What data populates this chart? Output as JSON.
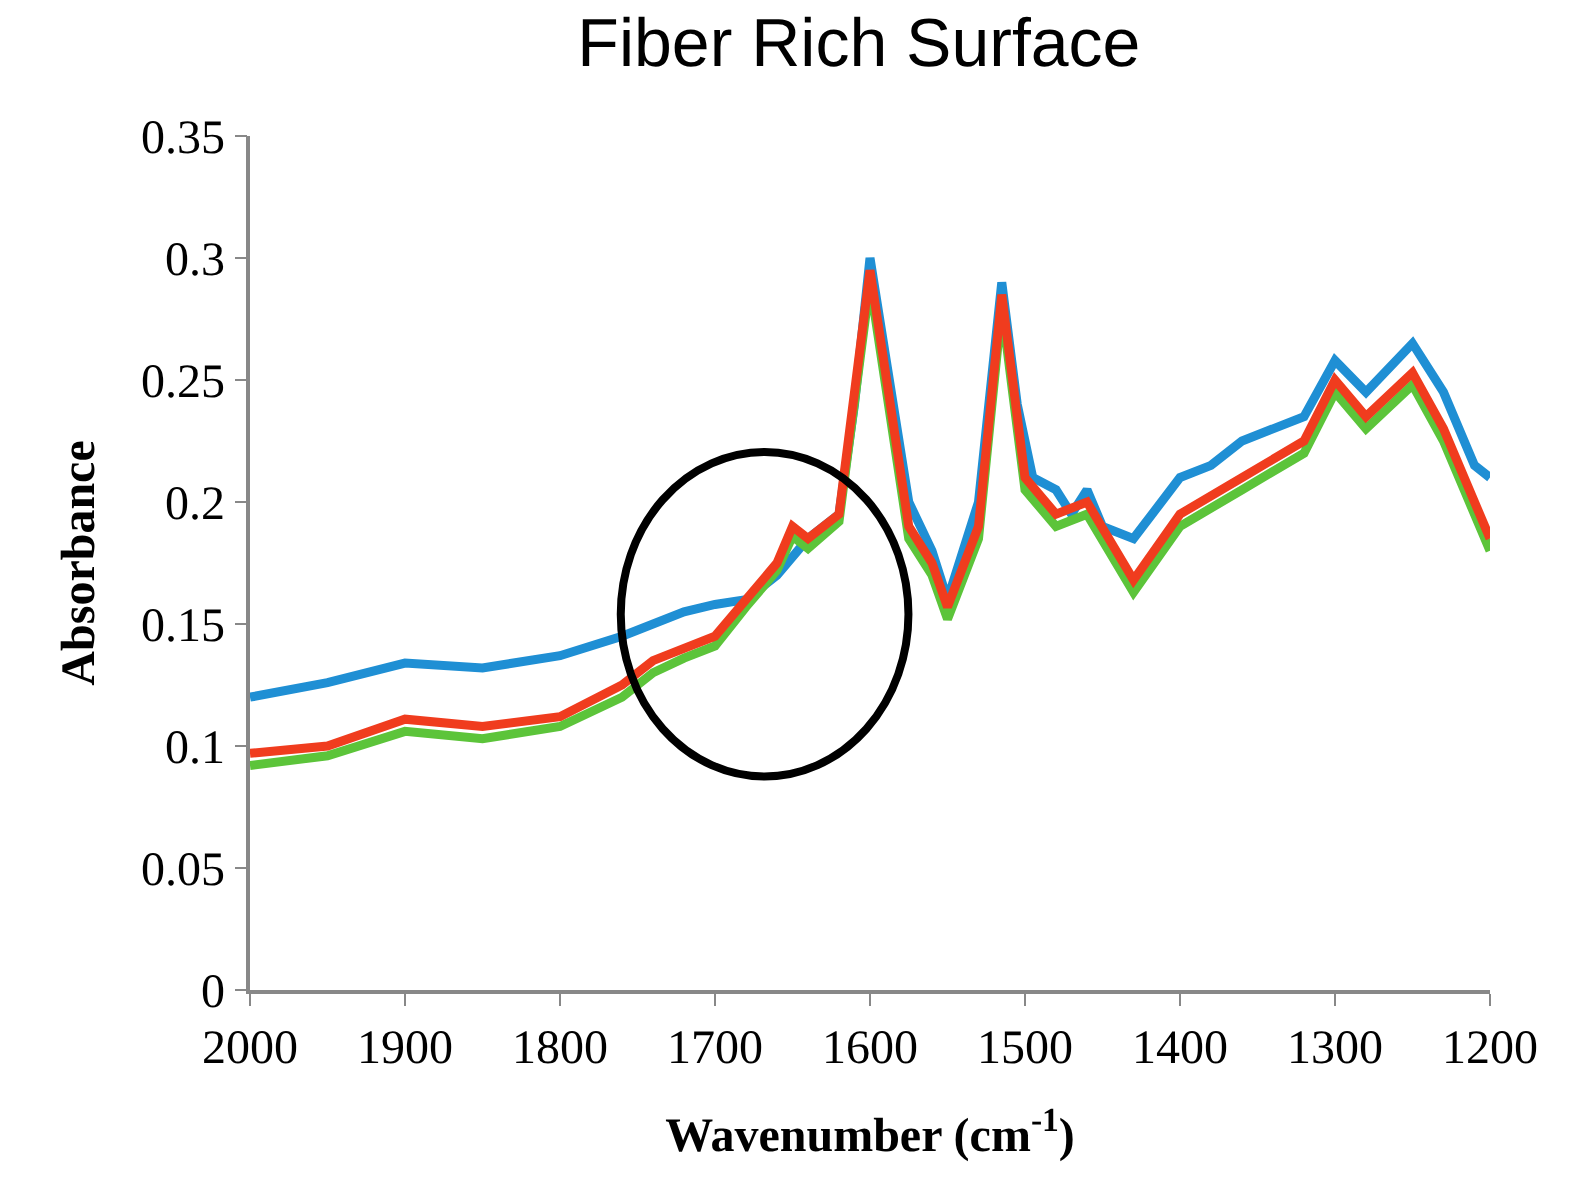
{
  "chart_data": {
    "type": "line",
    "title": "Fiber Rich Surface",
    "xlabel": "Wavenumber (cm$^{-1}$)",
    "ylabel": "Absorbance",
    "xlim": [
      2000,
      1200
    ],
    "xticks": [
      2000,
      1900,
      1800,
      1700,
      1600,
      1500,
      1400,
      1300,
      1200
    ],
    "ylim": [
      0,
      0.35
    ],
    "yticks": [
      0,
      0.05,
      0.1,
      0.15,
      0.2,
      0.25,
      0.3,
      0.35
    ],
    "grid": false,
    "marker": "none",
    "line_style": "solid",
    "series": [
      {
        "color": "#1f8fd4",
        "x": [
          2000,
          1950,
          1900,
          1850,
          1800,
          1760,
          1720,
          1700,
          1680,
          1660,
          1640,
          1620,
          1610,
          1600,
          1590,
          1575,
          1560,
          1550,
          1540,
          1530,
          1515,
          1505,
          1495,
          1480,
          1470,
          1460,
          1450,
          1430,
          1400,
          1380,
          1360,
          1320,
          1300,
          1280,
          1250,
          1230,
          1210,
          1200
        ],
        "values": [
          0.12,
          0.126,
          0.134,
          0.132,
          0.137,
          0.145,
          0.155,
          0.158,
          0.16,
          0.17,
          0.185,
          0.195,
          0.24,
          0.3,
          0.26,
          0.2,
          0.18,
          0.16,
          0.18,
          0.2,
          0.29,
          0.24,
          0.21,
          0.205,
          0.195,
          0.205,
          0.19,
          0.185,
          0.21,
          0.215,
          0.225,
          0.235,
          0.258,
          0.245,
          0.265,
          0.245,
          0.215,
          0.21
        ]
      },
      {
        "color": "#5cc43a",
        "x": [
          2000,
          1950,
          1900,
          1850,
          1800,
          1760,
          1740,
          1720,
          1700,
          1680,
          1660,
          1650,
          1640,
          1620,
          1600,
          1575,
          1560,
          1550,
          1530,
          1515,
          1500,
          1480,
          1460,
          1430,
          1400,
          1360,
          1320,
          1300,
          1280,
          1250,
          1230,
          1200
        ],
        "values": [
          0.092,
          0.096,
          0.106,
          0.103,
          0.108,
          0.12,
          0.13,
          0.136,
          0.141,
          0.157,
          0.172,
          0.186,
          0.181,
          0.192,
          0.29,
          0.185,
          0.17,
          0.152,
          0.185,
          0.28,
          0.205,
          0.19,
          0.195,
          0.163,
          0.19,
          0.205,
          0.22,
          0.245,
          0.23,
          0.248,
          0.225,
          0.18
        ]
      },
      {
        "color": "#f03c1e",
        "x": [
          2000,
          1950,
          1900,
          1850,
          1800,
          1760,
          1740,
          1720,
          1700,
          1680,
          1660,
          1650,
          1640,
          1620,
          1600,
          1575,
          1560,
          1550,
          1530,
          1515,
          1500,
          1480,
          1460,
          1430,
          1400,
          1360,
          1320,
          1300,
          1280,
          1250,
          1230,
          1200
        ],
        "values": [
          0.097,
          0.1,
          0.111,
          0.108,
          0.112,
          0.125,
          0.135,
          0.14,
          0.145,
          0.16,
          0.175,
          0.19,
          0.185,
          0.195,
          0.295,
          0.19,
          0.175,
          0.157,
          0.19,
          0.285,
          0.21,
          0.195,
          0.2,
          0.168,
          0.195,
          0.21,
          0.225,
          0.25,
          0.235,
          0.253,
          0.23,
          0.185
        ]
      }
    ]
  }
}
